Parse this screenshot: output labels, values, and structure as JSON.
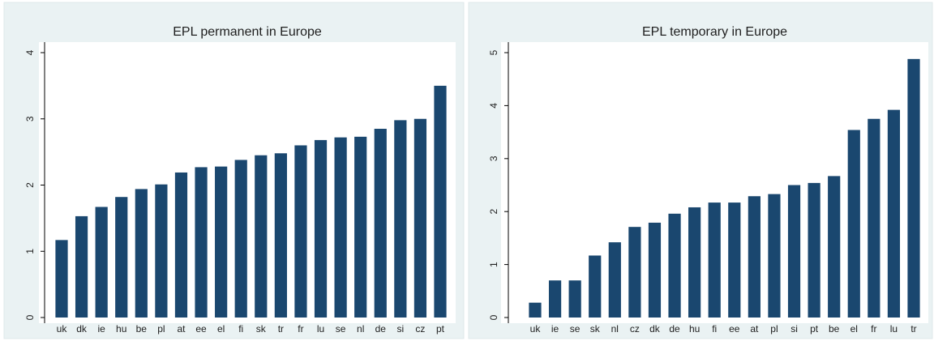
{
  "chart_data": [
    {
      "type": "bar",
      "title": "EPL permanent in Europe",
      "categories": [
        "uk",
        "dk",
        "ie",
        "hu",
        "be",
        "pl",
        "at",
        "ee",
        "el",
        "fi",
        "sk",
        "tr",
        "fr",
        "lu",
        "se",
        "nl",
        "de",
        "si",
        "cz",
        "pt"
      ],
      "values": [
        1.17,
        1.53,
        1.67,
        1.82,
        1.94,
        2.01,
        2.19,
        2.27,
        2.28,
        2.38,
        2.45,
        2.48,
        2.6,
        2.68,
        2.72,
        2.73,
        2.85,
        2.98,
        3.0,
        3.5
      ],
      "color": "#1a476f",
      "ylim": [
        0,
        4
      ],
      "yticks": [
        0,
        1,
        2,
        3,
        4
      ]
    },
    {
      "type": "bar",
      "title": "EPL temporary in Europe",
      "categories": [
        "uk",
        "ie",
        "se",
        "sk",
        "nl",
        "cz",
        "dk",
        "de",
        "hu",
        "fi",
        "ee",
        "at",
        "pl",
        "si",
        "pt",
        "be",
        "el",
        "fr",
        "lu",
        "tr"
      ],
      "values": [
        0.28,
        0.7,
        0.7,
        1.17,
        1.42,
        1.71,
        1.79,
        1.96,
        2.08,
        2.17,
        2.17,
        2.29,
        2.33,
        2.5,
        2.54,
        2.67,
        3.54,
        3.75,
        3.92,
        4.88
      ],
      "color": "#1a476f",
      "ylim": [
        0,
        5
      ],
      "yticks": [
        0,
        1,
        2,
        3,
        4,
        5
      ]
    }
  ]
}
